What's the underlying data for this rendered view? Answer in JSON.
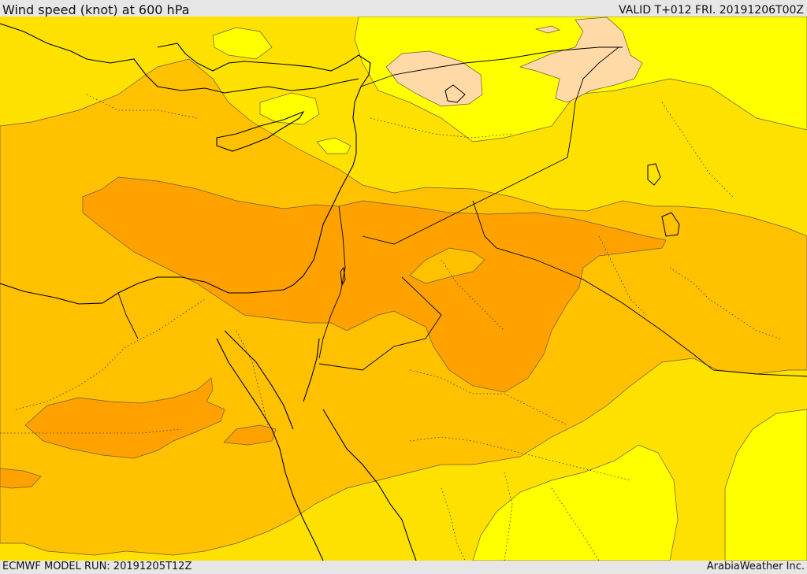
{
  "header": {
    "title": "Wind speed (knot) at 600 hPa",
    "valid_time": "VALID T+012 FRI. 20191206T00Z"
  },
  "footer": {
    "model_run": "ECMWF MODEL RUN: 20191205T12Z",
    "credit": "ArabiaWeather Inc."
  },
  "colors": {
    "calm": "#ffd9a6",
    "light": "#ffff00",
    "moderate": "#ffe100",
    "fresh": "#ffc100",
    "strong": "#ffa200",
    "contour": "#6b5a3a",
    "border": "#000000"
  }
}
